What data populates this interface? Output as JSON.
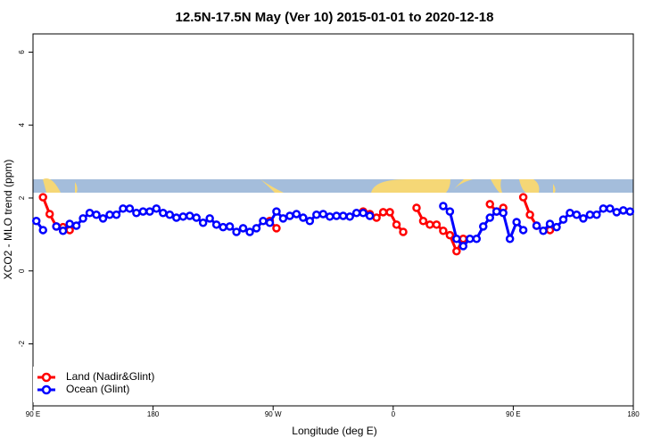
{
  "chart_data": {
    "type": "line",
    "title": "12.5N-17.5N May (Ver 10)   2015-01-01 to 2020-12-18",
    "x_label": "Longitude (deg E)",
    "y_label": "XCO2 - MLO trend (ppm)",
    "xlim": [
      90,
      540
    ],
    "ylim": [
      -3.7,
      6.5
    ],
    "xticks": [
      {
        "value": 90,
        "label": "90 E"
      },
      180,
      {
        "value": 270,
        "label": "90 W"
      },
      {
        "value": 360,
        "label": "0"
      },
      {
        "value": 450,
        "label": "90 E"
      },
      {
        "value": 540,
        "label": "180"
      }
    ],
    "yticks": [
      -2,
      0,
      2,
      4,
      6
    ],
    "legend": "bottom-left",
    "x": [
      92.5,
      97.5,
      102.5,
      107.5,
      112.5,
      117.5,
      122.5,
      127.5,
      132.5,
      137.5,
      142.5,
      147.5,
      152.5,
      157.5,
      162.5,
      167.5,
      172.5,
      177.5,
      182.5,
      187.5,
      192.5,
      197.5,
      202.5,
      207.5,
      212.5,
      217.5,
      222.5,
      227.5,
      232.5,
      237.5,
      242.5,
      247.5,
      252.5,
      257.5,
      262.5,
      267.5,
      272.5,
      277.5,
      282.5,
      287.5,
      292.5,
      297.5,
      302.5,
      307.5,
      312.5,
      317.5,
      322.5,
      327.5,
      332.5,
      337.5,
      342.5,
      347.5,
      352.5,
      357.5,
      362.5,
      367.5,
      372.5,
      377.5,
      382.5,
      387.5,
      392.5,
      397.5,
      402.5,
      407.5,
      412.5,
      417.5,
      422.5,
      427.5,
      432.5,
      437.5,
      442.5,
      447.5,
      452.5,
      457.5,
      462.5,
      467.5,
      472.5,
      477.5,
      482.5,
      487.5,
      492.5,
      497.5,
      502.5,
      507.5,
      512.5,
      517.5,
      522.5,
      527.5,
      532.5,
      537.5
    ],
    "series": [
      {
        "name": "Land (Nadir&Glint)",
        "color": "#ff0000",
        "values": [
          null,
          2.02,
          1.56,
          1.22,
          1.2,
          1.12,
          null,
          null,
          null,
          null,
          null,
          null,
          null,
          null,
          null,
          null,
          null,
          null,
          null,
          null,
          null,
          null,
          null,
          null,
          null,
          null,
          null,
          null,
          null,
          null,
          null,
          null,
          null,
          null,
          null,
          1.37,
          1.17,
          null,
          null,
          null,
          null,
          null,
          null,
          null,
          null,
          null,
          null,
          null,
          null,
          1.63,
          1.56,
          1.46,
          1.61,
          1.61,
          1.27,
          1.07,
          null,
          1.73,
          1.37,
          1.27,
          1.27,
          1.1,
          0.98,
          0.54,
          0.88,
          null,
          null,
          null,
          1.83,
          1.63,
          1.73,
          null,
          null,
          2.02,
          1.54,
          1.24,
          null,
          1.12,
          null,
          null,
          null,
          null,
          null,
          null,
          null,
          null,
          null,
          null,
          null,
          null
        ]
      },
      {
        "name": "Ocean (Glint)",
        "color": "#0000ff",
        "values": [
          1.37,
          1.12,
          null,
          1.22,
          1.1,
          1.29,
          1.24,
          1.44,
          1.59,
          1.54,
          1.44,
          1.54,
          1.54,
          1.71,
          1.71,
          1.59,
          1.63,
          1.63,
          1.71,
          1.59,
          1.54,
          1.46,
          1.49,
          1.51,
          1.46,
          1.32,
          1.44,
          1.27,
          1.2,
          1.22,
          1.07,
          1.17,
          1.07,
          1.17,
          1.37,
          1.32,
          1.63,
          1.44,
          1.51,
          1.56,
          1.46,
          1.37,
          1.54,
          1.56,
          1.49,
          1.51,
          1.51,
          1.49,
          1.59,
          1.59,
          1.51,
          null,
          null,
          null,
          null,
          null,
          null,
          null,
          null,
          null,
          null,
          1.78,
          1.63,
          0.88,
          0.68,
          0.88,
          0.88,
          1.22,
          1.46,
          1.63,
          1.59,
          0.88,
          1.34,
          1.12,
          null,
          1.24,
          1.1,
          1.29,
          1.2,
          1.41,
          1.59,
          1.54,
          1.44,
          1.54,
          1.54,
          1.71,
          1.71,
          1.61,
          1.66,
          1.63
        ]
      }
    ]
  }
}
